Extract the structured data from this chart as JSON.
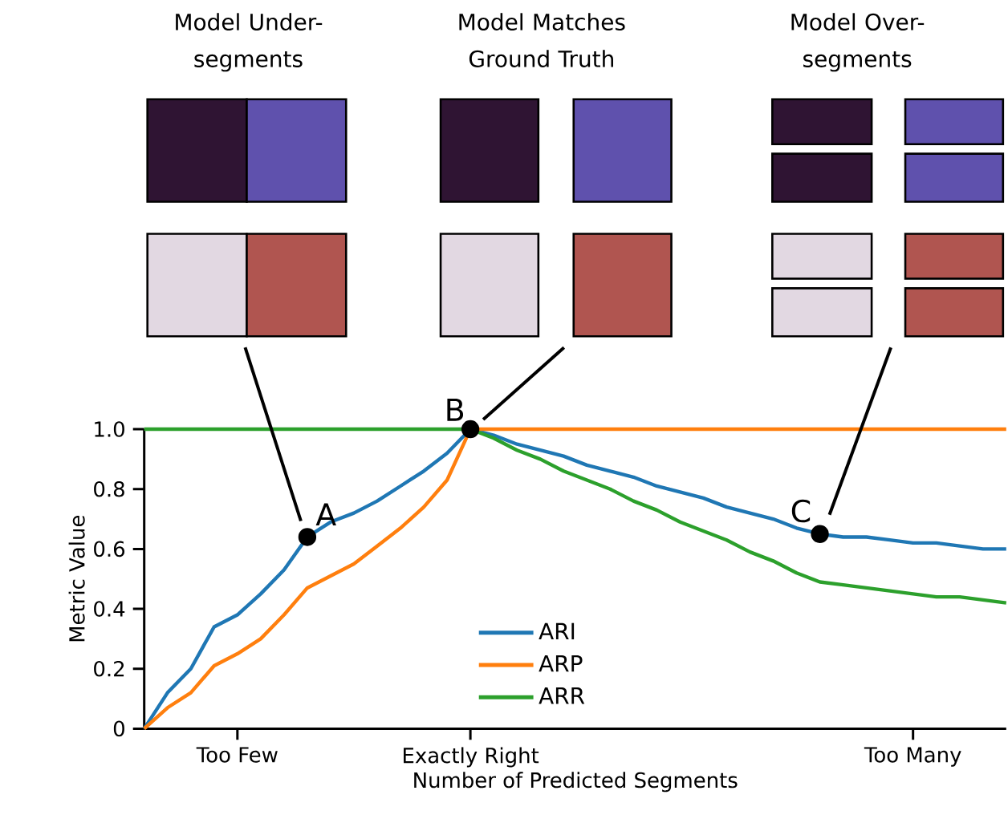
{
  "chart_data": {
    "type": "line",
    "xlabel": "Number of Predicted Segments",
    "ylabel": "Metric Value",
    "categories": [
      null,
      null,
      null,
      null,
      "Too Few",
      null,
      null,
      null,
      null,
      null,
      null,
      null,
      null,
      null,
      "Exactly Right",
      null,
      null,
      null,
      null,
      null,
      null,
      null,
      null,
      null,
      null,
      null,
      null,
      null,
      null,
      null,
      null,
      null,
      null,
      "Too Many",
      null,
      null,
      null,
      null
    ],
    "ylim": [
      0,
      1
    ],
    "yticks": [
      0,
      0.2,
      0.4,
      0.6,
      0.8,
      {
        "value": 1.0,
        "label": "1.0"
      }
    ],
    "legend": "bottom",
    "series": [
      {
        "name": "ARI",
        "color": "#1f77b4",
        "values": [
          0,
          0.12,
          0.2,
          0.34,
          0.38,
          0.45,
          0.53,
          0.64,
          0.69,
          0.72,
          0.76,
          0.81,
          0.86,
          0.92,
          1.0,
          0.98,
          0.95,
          0.93,
          0.91,
          0.88,
          0.86,
          0.84,
          0.81,
          0.79,
          0.77,
          0.74,
          0.72,
          0.7,
          0.67,
          0.65,
          0.64,
          0.64,
          0.63,
          0.62,
          0.62,
          0.61,
          0.6,
          0.6
        ]
      },
      {
        "name": "ARP",
        "color": "#ff7f0e",
        "values": [
          0,
          0.07,
          0.12,
          0.21,
          0.25,
          0.3,
          0.38,
          0.47,
          0.51,
          0.55,
          0.61,
          0.67,
          0.74,
          0.83,
          1.0,
          1.0,
          1.0,
          1.0,
          1.0,
          1.0,
          1.0,
          1.0,
          1.0,
          1.0,
          1.0,
          1.0,
          1.0,
          1.0,
          1.0,
          1.0,
          1.0,
          1.0,
          1.0,
          1.0,
          1.0,
          1.0,
          1.0,
          1.0
        ]
      },
      {
        "name": "ARR",
        "color": "#2ca02c",
        "values": [
          1.0,
          1.0,
          1.0,
          1.0,
          1.0,
          1.0,
          1.0,
          1.0,
          1.0,
          1.0,
          1.0,
          1.0,
          1.0,
          1.0,
          1.0,
          0.97,
          0.93,
          0.9,
          0.86,
          0.83,
          0.8,
          0.76,
          0.73,
          0.69,
          0.66,
          0.63,
          0.59,
          0.56,
          0.52,
          0.49,
          0.48,
          0.47,
          0.46,
          0.45,
          0.44,
          0.44,
          0.43,
          0.42
        ]
      },
      {
        "type": "scatter",
        "color": "#000000",
        "values": [
          null,
          null,
          null,
          null,
          null,
          null,
          null,
          0.64,
          null,
          null,
          null,
          null,
          null,
          null,
          1.0,
          null,
          null,
          null,
          null,
          null,
          null,
          null,
          null,
          null,
          null,
          null,
          null,
          null,
          null,
          0.65,
          null,
          null,
          null,
          null,
          null,
          null,
          null,
          null
        ]
      }
    ],
    "annotations": [
      "Model Under-segments",
      "Model Matches Ground Truth",
      "Model Over-segments",
      "A",
      "B",
      "C"
    ]
  }
}
